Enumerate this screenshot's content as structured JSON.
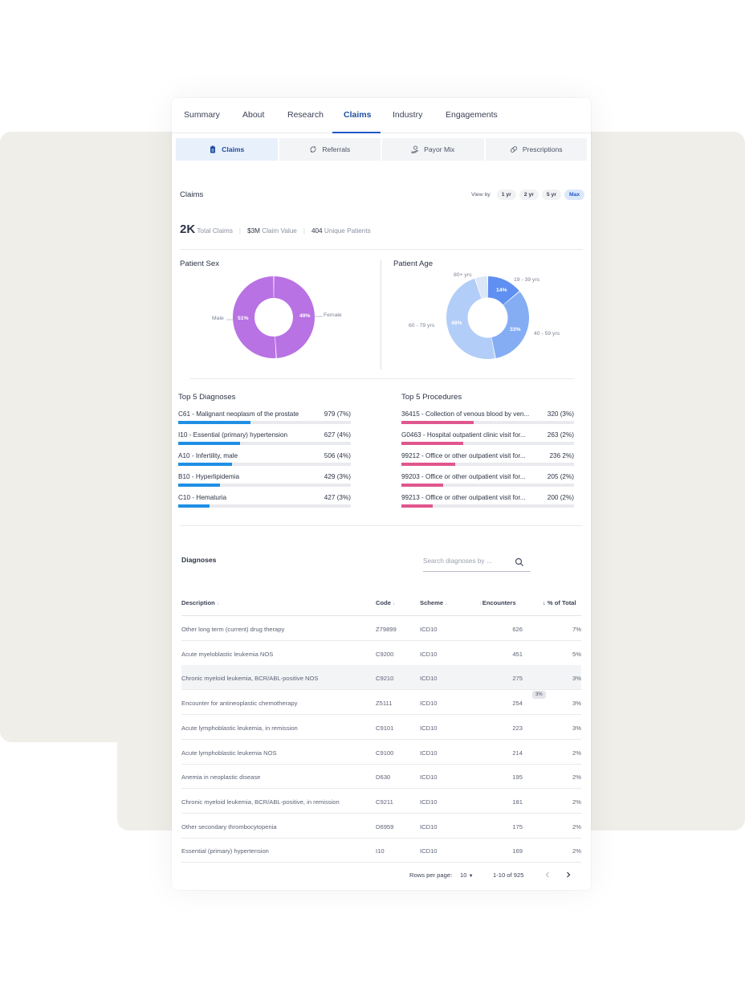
{
  "tabs": [
    {
      "label": "Summary"
    },
    {
      "label": "About"
    },
    {
      "label": "Research"
    },
    {
      "label": "Claims"
    },
    {
      "label": "Industry"
    },
    {
      "label": "Engagements"
    }
  ],
  "subtabs": [
    {
      "label": "Claims",
      "icon": "clipboard-icon"
    },
    {
      "label": "Referrals",
      "icon": "referral-icon"
    },
    {
      "label": "Payor Mix",
      "icon": "payor-icon"
    },
    {
      "label": "Prescriptions",
      "icon": "pill-icon"
    }
  ],
  "claims": {
    "title": "Claims",
    "view_by_label": "View by",
    "view_by_options": [
      "1 yr",
      "2 yr",
      "5 yr",
      "Max"
    ],
    "view_by_selected": "Max",
    "stats": {
      "total_value": "2K",
      "total_label": "Total Claims",
      "claim_value": "$3M",
      "claim_label": "Claim Value",
      "patients_value": "404",
      "patients_label": "Unique Patients"
    }
  },
  "patient_sex": {
    "title": "Patient Sex",
    "slices": [
      {
        "label": "Female",
        "pct_text": "49%",
        "value": 49,
        "color": "#b872e3"
      },
      {
        "label": "Male",
        "pct_text": "51%",
        "value": 51,
        "color": "#b872e3"
      }
    ]
  },
  "patient_age": {
    "title": "Patient Age",
    "slices": [
      {
        "label": "19 - 39 yrs",
        "pct_text": "14%",
        "value": 14,
        "color": "#5f8ff0"
      },
      {
        "label": "40 - 59 yrs",
        "pct_text": "33%",
        "value": 33,
        "color": "#85adf4"
      },
      {
        "label": "60 - 79 yrs",
        "pct_text": "48%",
        "value": 48,
        "color": "#b2cdf7"
      },
      {
        "label": "80+ yrs",
        "pct_text": "",
        "value": 5,
        "color": "#dbe6f8"
      }
    ]
  },
  "top_diagnoses": {
    "title": "Top 5 Diagnoses",
    "color": "#1f8fe5",
    "items": [
      {
        "label": "C61 - Malignant neoplasm of the prostate",
        "value": "979 (7%)",
        "fill": 0.42
      },
      {
        "label": "I10 - Essential (primary) hypertension",
        "value": "627 (4%)",
        "fill": 0.36
      },
      {
        "label": "A10 - Infertility, male",
        "value": "506 (4%)",
        "fill": 0.31
      },
      {
        "label": "B10 - Hyperlipidemia",
        "value": "429 (3%)",
        "fill": 0.24
      },
      {
        "label": "C10 - Hematuria",
        "value": "427 (3%)",
        "fill": 0.18
      }
    ]
  },
  "top_procedures": {
    "title": "Top 5 Procedures",
    "color": "#e0568e",
    "items": [
      {
        "label": "36415 - Collection of venous blood by ven...",
        "value": "320 (3%)",
        "fill": 0.42
      },
      {
        "label": "G0463 - Hospital outpatient clinic visit for...",
        "value": "263 (2%)",
        "fill": 0.36
      },
      {
        "label": "99212 - Office or other outpatient visit for...",
        "value": "236 2%)",
        "fill": 0.31
      },
      {
        "label": "99203 - Office or other outpatient visit for...",
        "value": "205 (2%)",
        "fill": 0.24
      },
      {
        "label": "99213 - Office or other outpatient visit for...",
        "value": "200 (2%)",
        "fill": 0.18
      }
    ]
  },
  "diagnoses_table": {
    "title": "Diagnoses",
    "search_placeholder": "Search diagnoses by ...",
    "columns": {
      "description": "Description",
      "code": "Code",
      "scheme": "Scheme",
      "encounters": "Encounters",
      "pct": "% of Total"
    },
    "rows": [
      {
        "description": "Other long term (current) drug therapy",
        "code": "Z79899",
        "scheme": "ICD10",
        "encounters": "626",
        "pct": "7%"
      },
      {
        "description": "Acute myeloblastic leukemia NOS",
        "code": "C9200",
        "scheme": "ICD10",
        "encounters": "451",
        "pct": "5%"
      },
      {
        "description": "Chronic myeloid leukemia, BCR/ABL-positive NOS",
        "code": "C9210",
        "scheme": "ICD10",
        "encounters": "275",
        "pct": "3%"
      },
      {
        "description": "Encounter for antineoplastic chemotherapy",
        "code": "Z5111",
        "scheme": "ICD10",
        "encounters": "254",
        "pct": "3%"
      },
      {
        "description": "Acute lymphoblastic leukemia, in remission",
        "code": "C9101",
        "scheme": "ICD10",
        "encounters": "223",
        "pct": "3%"
      },
      {
        "description": "Acute lymphoblastic leukemia NOS",
        "code": "C9100",
        "scheme": "ICD10",
        "encounters": "214",
        "pct": "2%"
      },
      {
        "description": "Anemia in neoplastic disease",
        "code": "D630",
        "scheme": "ICD10",
        "encounters": "195",
        "pct": "2%"
      },
      {
        "description": "Chronic myeloid leukemia, BCR/ABL-positive, in remission",
        "code": "C9211",
        "scheme": "ICD10",
        "encounters": "181",
        "pct": "2%"
      },
      {
        "description": "Other secondary thrombocytopenia",
        "code": "D6959",
        "scheme": "ICD10",
        "encounters": "175",
        "pct": "2%"
      },
      {
        "description": "Essential (primary) hypertension",
        "code": "I10",
        "scheme": "ICD10",
        "encounters": "169",
        "pct": "2%"
      }
    ],
    "tooltip": "3%",
    "pagination": {
      "rows_label": "Rows per page:",
      "rows_value": "10",
      "range": "1-10 of 925"
    }
  }
}
